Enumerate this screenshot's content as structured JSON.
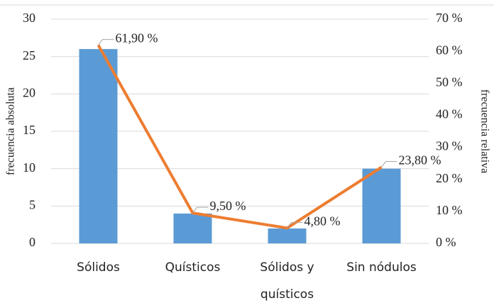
{
  "chart_data": {
    "type": "bar",
    "categories": [
      "Sólidos",
      "Quísticos",
      "Sólidos y quísticos",
      "Sin nódulos"
    ],
    "series": [
      {
        "type": "bar",
        "color": "#5b9bd5",
        "values": [
          26,
          4,
          2,
          10
        ]
      },
      {
        "type": "line",
        "color": "#ed7d31",
        "axis": "y2",
        "values": [
          61.9,
          9.5,
          4.8,
          23.8
        ],
        "value_labels": [
          "61,90 %",
          "9,50 %",
          "4,80 %",
          "23,80 %"
        ]
      }
    ],
    "ylabel": "frecuencia  absoluta",
    "y2label": "frecuencia  relativa",
    "ylim": [
      0,
      30
    ],
    "yticks": [
      0,
      5,
      10,
      15,
      20,
      25,
      30
    ],
    "y2lim": [
      0,
      70
    ],
    "y2ticks": [
      {
        "value": 0,
        "label": "0 %"
      },
      {
        "value": 10,
        "label": "10 %"
      },
      {
        "value": 20,
        "label": "20 %"
      },
      {
        "value": 30,
        "label": "30 %"
      },
      {
        "value": 40,
        "label": "40 %"
      },
      {
        "value": 50,
        "label": "50 %"
      },
      {
        "value": 60,
        "label": "60 %"
      },
      {
        "value": 70,
        "label": "70 %"
      }
    ],
    "grid": true
  }
}
